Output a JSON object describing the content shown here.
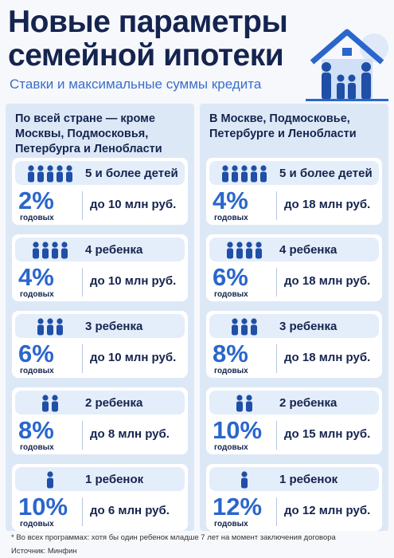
{
  "header": {
    "title_line1": "Новые параметры",
    "title_line2": "семейной ипотеки",
    "subtitle": "Ставки и максимальные суммы кредита"
  },
  "columns": [
    {
      "header": [
        "По всей стране — кроме",
        "Москвы, Подмосковья,",
        "Петербурга и Ленобласти"
      ],
      "cards": [
        {
          "children": "5 и более детей",
          "rate": "2%",
          "rate_label": "годовых",
          "amount": "до 10 млн руб."
        },
        {
          "children": "4 ребенка",
          "rate": "4%",
          "rate_label": "годовых",
          "amount": "до 10 млн руб."
        },
        {
          "children": "3 ребенка",
          "rate": "6%",
          "rate_label": "годовых",
          "amount": "до 10 млн руб."
        },
        {
          "children": "2 ребенка",
          "rate": "8%",
          "rate_label": "годовых",
          "amount": "до 8 млн руб."
        },
        {
          "children": "1 ребенок",
          "rate": "10%",
          "rate_label": "годовых",
          "amount": "до 6 млн руб."
        }
      ]
    },
    {
      "header": [
        "В Москве, Подмосковье,",
        "Петербурге и Ленобласти"
      ],
      "cards": [
        {
          "children": "5 и более детей",
          "rate": "4%",
          "rate_label": "годовых",
          "amount": "до 18 млн руб."
        },
        {
          "children": "4 ребенка",
          "rate": "6%",
          "rate_label": "годовых",
          "amount": "до 18 млн руб."
        },
        {
          "children": "3 ребенка",
          "rate": "8%",
          "rate_label": "годовых",
          "amount": "до 18 млн руб."
        },
        {
          "children": "2 ребенка",
          "rate": "10%",
          "rate_label": "годовых",
          "amount": "до 15 млн руб."
        },
        {
          "children": "1 ребенок",
          "rate": "12%",
          "rate_label": "годовых",
          "amount": "до 12 млн руб."
        }
      ]
    }
  ],
  "footnote": "* Во всех программах: хотя бы один ребенок младше 7 лет на момент заключения договора",
  "source": "Источник: Минфин"
}
